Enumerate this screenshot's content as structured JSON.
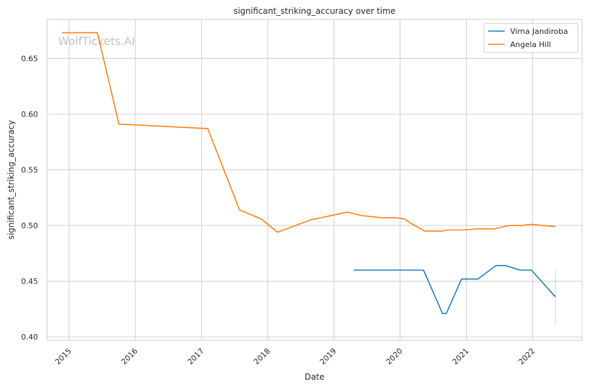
{
  "chart_data": {
    "type": "line",
    "title": "significant_striking_accuracy over time",
    "xlabel": "Date",
    "ylabel": "significant_striking_accuracy",
    "watermark": "WolfTickets.AI",
    "xlim": [
      "2014-09-01",
      "2022-10-01"
    ],
    "ylim": [
      0.397,
      0.685
    ],
    "x_ticks": [
      "2015-01-01",
      "2016-01-01",
      "2017-01-01",
      "2018-01-01",
      "2019-01-01",
      "2020-01-01",
      "2021-01-01",
      "2022-01-01"
    ],
    "x_tick_labels": [
      "2015",
      "2016",
      "2017",
      "2018",
      "2019",
      "2020",
      "2021",
      "2022"
    ],
    "y_ticks": [
      0.4,
      0.45,
      0.5,
      0.55,
      0.6,
      0.65
    ],
    "y_tick_labels": [
      "0.40",
      "0.45",
      "0.50",
      "0.55",
      "0.60",
      "0.65"
    ],
    "grid": true,
    "legend_position": "top-right",
    "series": [
      {
        "name": "Virna Jandiroba",
        "color": "#1f77b4",
        "points": [
          [
            "2019-04-20",
            0.46
          ],
          [
            "2020-05-09",
            0.46
          ],
          [
            "2020-08-22",
            0.421
          ],
          [
            "2020-09-12",
            0.421
          ],
          [
            "2020-12-05",
            0.452
          ],
          [
            "2021-03-06",
            0.452
          ],
          [
            "2021-06-12",
            0.464
          ],
          [
            "2021-08-07",
            0.464
          ],
          [
            "2021-10-23",
            0.46
          ],
          [
            "2021-12-25",
            0.46
          ],
          [
            "2022-05-07",
            0.436
          ]
        ],
        "error_range": {
          "x": "2022-05-07",
          "low": 0.411,
          "high": 0.46
        }
      },
      {
        "name": "Angela Hill",
        "color": "#ff7f0e",
        "points": [
          [
            "2014-11-22",
            0.673
          ],
          [
            "2015-06-06",
            0.673
          ],
          [
            "2015-10-03",
            0.591
          ],
          [
            "2017-02-04",
            0.587
          ],
          [
            "2017-07-29",
            0.514
          ],
          [
            "2017-11-25",
            0.506
          ],
          [
            "2018-02-24",
            0.494
          ],
          [
            "2018-08-25",
            0.505
          ],
          [
            "2019-03-16",
            0.512
          ],
          [
            "2019-06-01",
            0.509
          ],
          [
            "2019-09-21",
            0.507
          ],
          [
            "2019-12-07",
            0.507
          ],
          [
            "2020-01-25",
            0.506
          ],
          [
            "2020-02-29",
            0.502
          ],
          [
            "2020-05-16",
            0.495
          ],
          [
            "2020-08-22",
            0.495
          ],
          [
            "2020-09-19",
            0.496
          ],
          [
            "2020-12-19",
            0.496
          ],
          [
            "2021-03-06",
            0.497
          ],
          [
            "2021-06-05",
            0.497
          ],
          [
            "2021-08-21",
            0.5
          ],
          [
            "2021-10-30",
            0.5
          ],
          [
            "2021-12-25",
            0.501
          ],
          [
            "2022-05-07",
            0.499
          ]
        ]
      }
    ]
  }
}
